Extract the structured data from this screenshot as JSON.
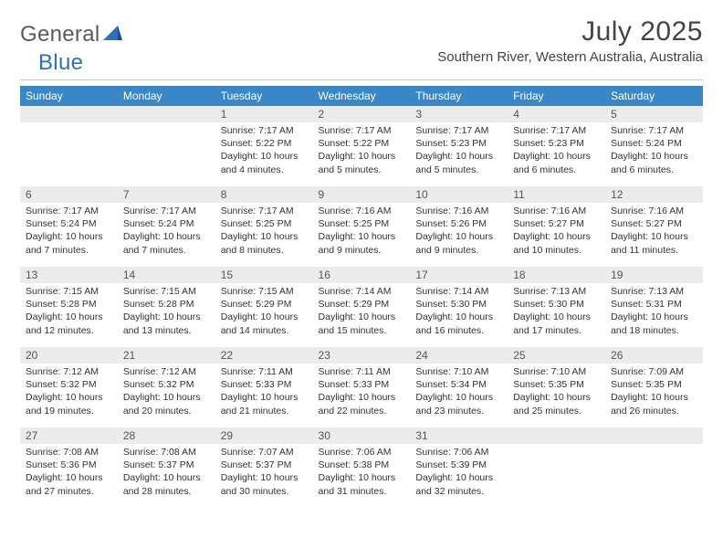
{
  "brand": {
    "text1": "General",
    "text2": "Blue"
  },
  "title": "July 2025",
  "location": "Southern River, Western Australia, Australia",
  "colors": {
    "header_bg": "#3a87c7",
    "header_text": "#ffffff",
    "band_bg": "#ececec",
    "text": "#333333",
    "brand_gray": "#5a5a5a",
    "brand_blue": "#2d72b5",
    "divider": "#c8c8c8",
    "page_bg": "#ffffff"
  },
  "typography": {
    "title_fontsize": 30,
    "location_fontsize": 15,
    "dow_fontsize": 12,
    "daynum_fontsize": 12,
    "body_fontsize": 10.5
  },
  "layout": {
    "columns": 7,
    "rows": 5,
    "leading_blanks": 2
  },
  "dow": [
    "Sunday",
    "Monday",
    "Tuesday",
    "Wednesday",
    "Thursday",
    "Friday",
    "Saturday"
  ],
  "days": [
    {
      "n": 1,
      "sunrise": "7:17 AM",
      "sunset": "5:22 PM",
      "daylight": "10 hours and 4 minutes."
    },
    {
      "n": 2,
      "sunrise": "7:17 AM",
      "sunset": "5:22 PM",
      "daylight": "10 hours and 5 minutes."
    },
    {
      "n": 3,
      "sunrise": "7:17 AM",
      "sunset": "5:23 PM",
      "daylight": "10 hours and 5 minutes."
    },
    {
      "n": 4,
      "sunrise": "7:17 AM",
      "sunset": "5:23 PM",
      "daylight": "10 hours and 6 minutes."
    },
    {
      "n": 5,
      "sunrise": "7:17 AM",
      "sunset": "5:24 PM",
      "daylight": "10 hours and 6 minutes."
    },
    {
      "n": 6,
      "sunrise": "7:17 AM",
      "sunset": "5:24 PM",
      "daylight": "10 hours and 7 minutes."
    },
    {
      "n": 7,
      "sunrise": "7:17 AM",
      "sunset": "5:24 PM",
      "daylight": "10 hours and 7 minutes."
    },
    {
      "n": 8,
      "sunrise": "7:17 AM",
      "sunset": "5:25 PM",
      "daylight": "10 hours and 8 minutes."
    },
    {
      "n": 9,
      "sunrise": "7:16 AM",
      "sunset": "5:25 PM",
      "daylight": "10 hours and 9 minutes."
    },
    {
      "n": 10,
      "sunrise": "7:16 AM",
      "sunset": "5:26 PM",
      "daylight": "10 hours and 9 minutes."
    },
    {
      "n": 11,
      "sunrise": "7:16 AM",
      "sunset": "5:27 PM",
      "daylight": "10 hours and 10 minutes."
    },
    {
      "n": 12,
      "sunrise": "7:16 AM",
      "sunset": "5:27 PM",
      "daylight": "10 hours and 11 minutes."
    },
    {
      "n": 13,
      "sunrise": "7:15 AM",
      "sunset": "5:28 PM",
      "daylight": "10 hours and 12 minutes."
    },
    {
      "n": 14,
      "sunrise": "7:15 AM",
      "sunset": "5:28 PM",
      "daylight": "10 hours and 13 minutes."
    },
    {
      "n": 15,
      "sunrise": "7:15 AM",
      "sunset": "5:29 PM",
      "daylight": "10 hours and 14 minutes."
    },
    {
      "n": 16,
      "sunrise": "7:14 AM",
      "sunset": "5:29 PM",
      "daylight": "10 hours and 15 minutes."
    },
    {
      "n": 17,
      "sunrise": "7:14 AM",
      "sunset": "5:30 PM",
      "daylight": "10 hours and 16 minutes."
    },
    {
      "n": 18,
      "sunrise": "7:13 AM",
      "sunset": "5:30 PM",
      "daylight": "10 hours and 17 minutes."
    },
    {
      "n": 19,
      "sunrise": "7:13 AM",
      "sunset": "5:31 PM",
      "daylight": "10 hours and 18 minutes."
    },
    {
      "n": 20,
      "sunrise": "7:12 AM",
      "sunset": "5:32 PM",
      "daylight": "10 hours and 19 minutes."
    },
    {
      "n": 21,
      "sunrise": "7:12 AM",
      "sunset": "5:32 PM",
      "daylight": "10 hours and 20 minutes."
    },
    {
      "n": 22,
      "sunrise": "7:11 AM",
      "sunset": "5:33 PM",
      "daylight": "10 hours and 21 minutes."
    },
    {
      "n": 23,
      "sunrise": "7:11 AM",
      "sunset": "5:33 PM",
      "daylight": "10 hours and 22 minutes."
    },
    {
      "n": 24,
      "sunrise": "7:10 AM",
      "sunset": "5:34 PM",
      "daylight": "10 hours and 23 minutes."
    },
    {
      "n": 25,
      "sunrise": "7:10 AM",
      "sunset": "5:35 PM",
      "daylight": "10 hours and 25 minutes."
    },
    {
      "n": 26,
      "sunrise": "7:09 AM",
      "sunset": "5:35 PM",
      "daylight": "10 hours and 26 minutes."
    },
    {
      "n": 27,
      "sunrise": "7:08 AM",
      "sunset": "5:36 PM",
      "daylight": "10 hours and 27 minutes."
    },
    {
      "n": 28,
      "sunrise": "7:08 AM",
      "sunset": "5:37 PM",
      "daylight": "10 hours and 28 minutes."
    },
    {
      "n": 29,
      "sunrise": "7:07 AM",
      "sunset": "5:37 PM",
      "daylight": "10 hours and 30 minutes."
    },
    {
      "n": 30,
      "sunrise": "7:06 AM",
      "sunset": "5:38 PM",
      "daylight": "10 hours and 31 minutes."
    },
    {
      "n": 31,
      "sunrise": "7:06 AM",
      "sunset": "5:39 PM",
      "daylight": "10 hours and 32 minutes."
    }
  ],
  "labels": {
    "sunrise": "Sunrise:",
    "sunset": "Sunset:",
    "daylight": "Daylight:"
  }
}
